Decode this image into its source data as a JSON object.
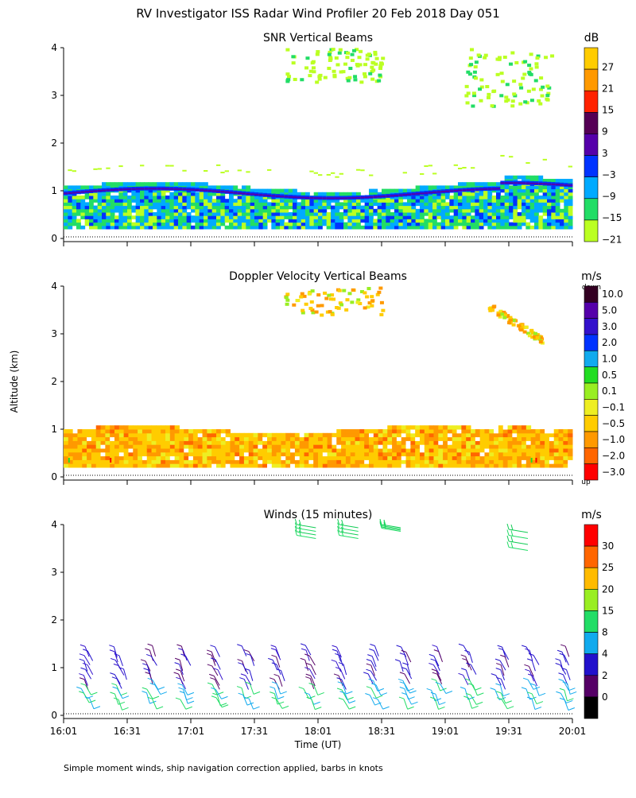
{
  "title": "RV Investigator ISS Radar Wind Profiler  20 Feb 2018 Day 051",
  "ylabel": "Altitude (km)",
  "xlabel": "Time (UT)",
  "footer": "Simple moment winds, ship navigation correction applied, barbs in knots",
  "x_ticks": [
    "16:01",
    "16:31",
    "17:01",
    "17:31",
    "18:01",
    "18:31",
    "19:01",
    "19:31",
    "20:01"
  ],
  "y_ticks": [
    "0",
    "1",
    "2",
    "3",
    "4"
  ],
  "panels": [
    {
      "title": "SNR Vertical Beams",
      "unit": "dB",
      "colorbar_labels": [
        "27",
        "21",
        "15",
        "9",
        "3",
        "−3",
        "−9",
        "−15",
        "−21"
      ],
      "colorbar_colors": [
        "#ffcc00",
        "#ff9900",
        "#ff2200",
        "#550055",
        "#5500aa",
        "#0033ff",
        "#00aaff",
        "#22dd66",
        "#bbff22"
      ]
    },
    {
      "title": "Doppler Velocity Vertical Beams",
      "unit": "m/s",
      "colorbar_top_note": "down",
      "colorbar_bottom_note": "up",
      "colorbar_labels": [
        "10.0",
        "5.0",
        "3.0",
        "2.0",
        "1.0",
        "0.5",
        "0.1",
        "−0.1",
        "−0.5",
        "−1.0",
        "−2.0",
        "−3.0"
      ],
      "colorbar_colors": [
        "#330022",
        "#5500aa",
        "#3311cc",
        "#0033ff",
        "#11aaee",
        "#22dd22",
        "#99ee22",
        "#eeee22",
        "#ffcc00",
        "#ff9900",
        "#ff6600",
        "#ff0000"
      ]
    },
    {
      "title": "Winds (15 minutes)",
      "unit": "m/s",
      "colorbar_labels": [
        "30",
        "25",
        "20",
        "15",
        "8",
        "4",
        "2",
        "0"
      ],
      "colorbar_colors": [
        "#ff0000",
        "#ff6600",
        "#ffbb00",
        "#99ee22",
        "#22dd66",
        "#11aaee",
        "#2211cc",
        "#550066",
        "#000000"
      ]
    }
  ],
  "chart_data": [
    {
      "type": "heatmap",
      "title": "SNR Vertical Beams",
      "x_range": [
        "16:01",
        "20:01"
      ],
      "ylim": [
        0,
        4
      ],
      "unit": "dB",
      "colorbar_range": [
        -21,
        33
      ],
      "layers": [
        {
          "name": "boundary-layer echo",
          "alt_km": [
            0.2,
            1.2
          ],
          "snr_db": [
            -21,
            3
          ]
        },
        {
          "name": "inversion peak",
          "alt_km": [
            0.9,
            1.1
          ],
          "snr_db": [
            -3,
            3
          ]
        },
        {
          "name": "cloud echo 1",
          "time": [
            "17:45",
            "18:31"
          ],
          "alt_km": [
            3.3,
            4.0
          ],
          "snr_db": [
            -21,
            -15
          ]
        },
        {
          "name": "cloud echo 2",
          "time": [
            "19:10",
            "19:51"
          ],
          "alt_km": [
            2.8,
            4.0
          ],
          "snr_db": [
            -21,
            -15
          ]
        }
      ]
    },
    {
      "type": "heatmap",
      "title": "Doppler Velocity Vertical Beams",
      "x_range": [
        "16:01",
        "20:01"
      ],
      "ylim": [
        0,
        4
      ],
      "unit": "m/s",
      "colorbar_range": [
        -3.0,
        10.0
      ],
      "layers": [
        {
          "name": "boundary layer",
          "alt_km": [
            0.2,
            1.1
          ],
          "velocity_ms": [
            -1.0,
            -0.1
          ]
        },
        {
          "name": "cloud echo 1",
          "time": [
            "17:45",
            "18:31"
          ],
          "alt_km": [
            3.4,
            4.0
          ],
          "velocity_ms": [
            -1.0,
            0.1
          ]
        },
        {
          "name": "cloud echo 2",
          "time": [
            "19:21",
            "19:46"
          ],
          "alt_km": [
            2.9,
            3.6
          ],
          "velocity_ms": [
            -1.0,
            0.1
          ]
        }
      ]
    },
    {
      "type": "scatter",
      "title": "Winds (15 minutes)",
      "x_range": [
        "16:01",
        "20:01"
      ],
      "ylim": [
        0,
        4
      ],
      "unit": "m/s",
      "profile_times": [
        "16:11",
        "16:26",
        "16:41",
        "16:56",
        "17:11",
        "17:26",
        "17:41",
        "17:56",
        "18:11",
        "18:26",
        "18:41",
        "18:56",
        "19:11",
        "19:26",
        "19:41",
        "19:56"
      ],
      "profile_alt_range_km": [
        0.2,
        1.5
      ],
      "low_level_speed_ms": [
        8,
        15
      ],
      "upper_level_speed_ms": [
        4,
        8
      ],
      "upper_groups": [
        {
          "time": "17:51",
          "alt_km": [
            3.7,
            4.0
          ],
          "speed_ms": [
            15,
            20
          ]
        },
        {
          "time": "18:11",
          "alt_km": [
            3.7,
            4.0
          ],
          "speed_ms": [
            15,
            20
          ]
        },
        {
          "time": "18:31",
          "alt_km": [
            3.9,
            4.0
          ],
          "speed_ms": [
            15,
            20
          ]
        },
        {
          "time": "19:31",
          "alt_km": [
            3.4,
            3.9
          ],
          "speed_ms": [
            15,
            20
          ]
        }
      ]
    }
  ]
}
